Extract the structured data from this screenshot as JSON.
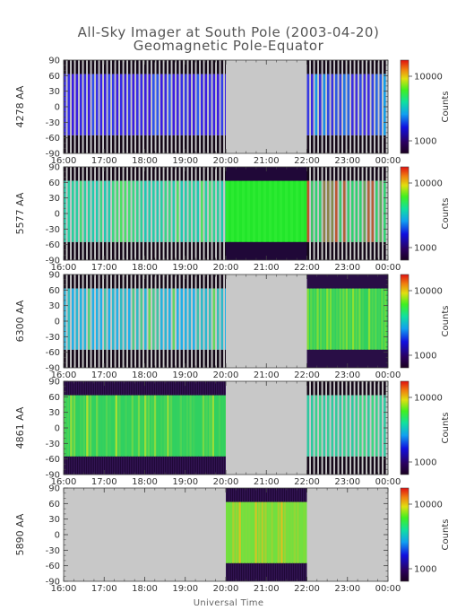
{
  "chart_data": {
    "type": "heatmap",
    "title": "All-Sky Imager at South Pole (2003-04-20)",
    "subtitle": "Geomagnetic Pole-Equator",
    "xlabel": "Universal Time",
    "colorbar_label": "Counts",
    "colorbar_ticks": [
      "10000",
      "1000"
    ],
    "x_ticks": [
      "16:00",
      "17:00",
      "18:00",
      "19:00",
      "20:00",
      "21:00",
      "22:00",
      "23:00",
      "00:00"
    ],
    "y_ticks": [
      "90",
      "60",
      "30",
      "0",
      "-30",
      "-60",
      "-90"
    ],
    "xlim_hours": [
      16,
      24
    ],
    "ylim": [
      -90,
      90
    ],
    "missing_color": "#c8c8c8",
    "panels": [
      {
        "name": "4278 AA",
        "segments": [
          {
            "start": 16,
            "end": 20,
            "pattern": "striped",
            "base": "#3a1ae0",
            "alt": "#3058f0",
            "bands": "dark-stripe"
          },
          {
            "start": 20,
            "end": 22,
            "pattern": "nodata"
          },
          {
            "start": 22,
            "end": 24,
            "pattern": "striped",
            "base": "#3c2ae0",
            "alt": "#10a8e8",
            "bands": "dark-stripe"
          }
        ]
      },
      {
        "name": "5577 AA",
        "segments": [
          {
            "start": 16,
            "end": 20,
            "pattern": "striped",
            "base": "#20c8b0",
            "alt": "#50e060",
            "bands": "dark-stripe"
          },
          {
            "start": 20,
            "end": 22,
            "pattern": "solid",
            "base": "#22e62a",
            "alt": "#40f040",
            "bands": "dark-solid"
          },
          {
            "start": 22,
            "end": 24,
            "pattern": "striped",
            "base": "#30d070",
            "alt": "#e83020",
            "bands": "dark-stripe"
          }
        ]
      },
      {
        "name": "6300 AA",
        "segments": [
          {
            "start": 16,
            "end": 20,
            "pattern": "striped",
            "base": "#20b0e8",
            "alt": "#70e040",
            "bands": "dark-stripe"
          },
          {
            "start": 20,
            "end": 22,
            "pattern": "nodata"
          },
          {
            "start": 22,
            "end": 24,
            "pattern": "dense",
            "base": "#30d060",
            "alt": "#90e030",
            "bands": "dark-solid"
          }
        ]
      },
      {
        "name": "4861 AA",
        "segments": [
          {
            "start": 16,
            "end": 20,
            "pattern": "dense",
            "base": "#30d060",
            "alt": "#b0e030",
            "bands": "dark-solid"
          },
          {
            "start": 20,
            "end": 22,
            "pattern": "nodata"
          },
          {
            "start": 22,
            "end": 24,
            "pattern": "striped",
            "base": "#30c8a0",
            "alt": "#40d880",
            "bands": "dark-stripe"
          }
        ]
      },
      {
        "name": "5890 AA",
        "segments": [
          {
            "start": 16,
            "end": 20,
            "pattern": "nodata"
          },
          {
            "start": 20,
            "end": 22,
            "pattern": "dense",
            "base": "#70e040",
            "alt": "#e0c020",
            "bands": "dark-solid"
          },
          {
            "start": 22,
            "end": 24,
            "pattern": "nodata"
          }
        ]
      }
    ]
  }
}
